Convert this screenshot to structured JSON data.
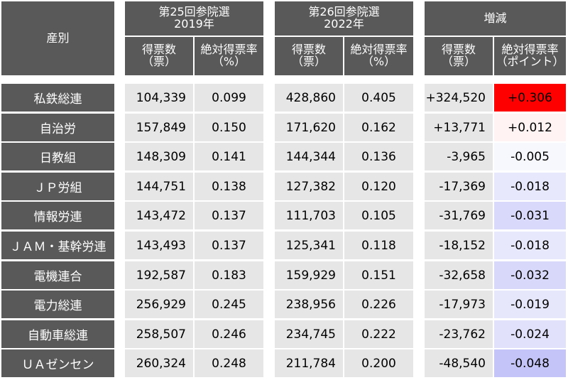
{
  "header": {
    "category": "産別",
    "election_2019": "第25回参院選\n2019年",
    "election_2022": "第26回参院選\n2022年",
    "change": "増減",
    "votes_label": "得票数\n（票）",
    "abs_rate_label": "絶対得票率\n（%）",
    "votes_label_2022": "得票数\n（票）",
    "abs_rate_label_2022": "絶対得票率\n（%）",
    "change_votes_label": "得票数\n（票）",
    "change_rate_label": "絶対得票率\n（ポイント）"
  },
  "rows": [
    {
      "name": "私鉄総連",
      "v2019": "104,339",
      "r2019": "0.099",
      "v2022": "428,860",
      "r2022": "0.405",
      "dv": "+324,520",
      "dr": "+0.306",
      "dr_color": "#ff0000"
    },
    {
      "name": "自治労",
      "v2019": "157,849",
      "r2019": "0.150",
      "v2022": "171,620",
      "r2022": "0.162",
      "dv": "+13,771",
      "dr": "+0.012",
      "dr_color": "#fff3f3"
    },
    {
      "name": "日教組",
      "v2019": "148,309",
      "r2019": "0.141",
      "v2022": "144,344",
      "r2022": "0.136",
      "dv": "-3,965",
      "dr": "-0.005",
      "dr_color": "#f7f7fe"
    },
    {
      "name": "ＪＰ労組",
      "v2019": "144,751",
      "r2019": "0.138",
      "v2022": "127,382",
      "r2022": "0.120",
      "dv": "-17,369",
      "dr": "-0.018",
      "dr_color": "#e8e8fc"
    },
    {
      "name": "情報労連",
      "v2019": "143,472",
      "r2019": "0.137",
      "v2022": "111,703",
      "r2022": "0.105",
      "dv": "-31,769",
      "dr": "-0.031",
      "dr_color": "#d9d9fb"
    },
    {
      "name": "ＪＡＭ・基幹労連",
      "v2019": "143,493",
      "r2019": "0.137",
      "v2022": "125,341",
      "r2022": "0.118",
      "dv": "-18,152",
      "dr": "-0.018",
      "dr_color": "#e8e8fc"
    },
    {
      "name": "電機連合",
      "v2019": "192,587",
      "r2019": "0.183",
      "v2022": "159,929",
      "r2022": "0.151",
      "dv": "-32,658",
      "dr": "-0.032",
      "dr_color": "#d8d8fb"
    },
    {
      "name": "電力総連",
      "v2019": "256,929",
      "r2019": "0.245",
      "v2022": "238,956",
      "r2022": "0.226",
      "dv": "-17,973",
      "dr": "-0.019",
      "dr_color": "#e7e7fc"
    },
    {
      "name": "自動車総連",
      "v2019": "258,507",
      "r2019": "0.246",
      "v2022": "234,745",
      "r2022": "0.222",
      "dv": "-23,762",
      "dr": "-0.024",
      "dr_color": "#e1e1fb"
    },
    {
      "name": "ＵＡゼンセン",
      "v2019": "260,324",
      "r2019": "0.248",
      "v2022": "211,784",
      "r2022": "0.200",
      "dv": "-48,540",
      "dr": "-0.048",
      "dr_color": "#c4c4f9"
    }
  ]
}
